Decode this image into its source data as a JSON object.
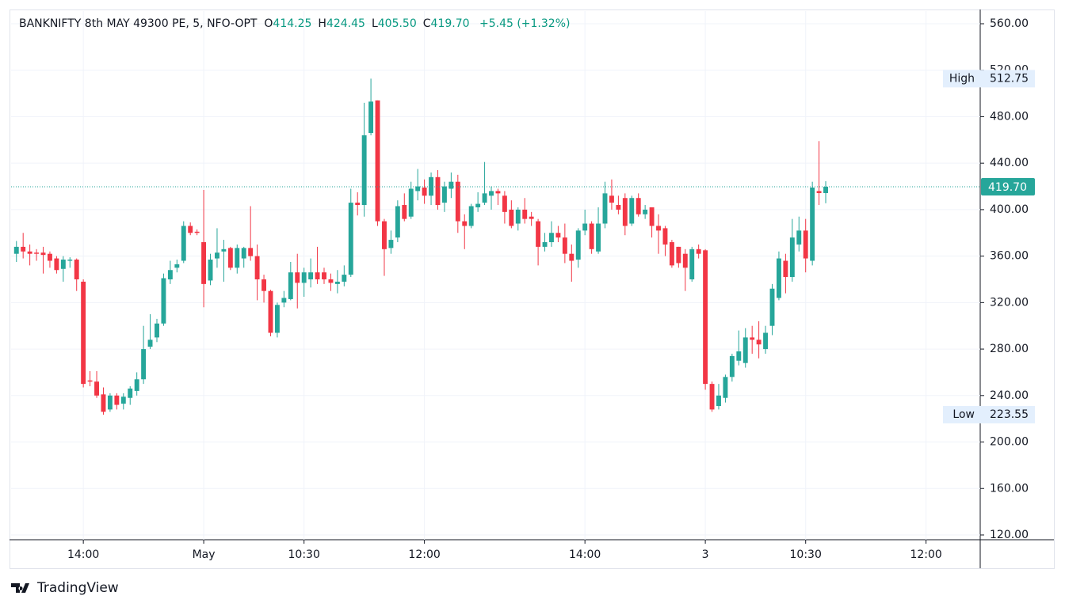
{
  "chart_data": {
    "type": "candlestick",
    "title": "BANKNIFTY 8th MAY 49300 PE, 5, NFO-OPT",
    "ohlc_legend": [
      {
        "label": "O",
        "value": "414.25"
      },
      {
        "label": "H",
        "value": "424.45"
      },
      {
        "label": "L",
        "value": "405.50"
      },
      {
        "label": "C",
        "value": "419.70"
      }
    ],
    "change": "+5.45 (+1.32%)",
    "up_color": "#26a69a",
    "down_color": "#f23645",
    "xlim": [
      -0.8,
      144.1
    ],
    "xticks": [
      {
        "value": 10,
        "label": "14:00"
      },
      {
        "value": 28,
        "label": "May"
      },
      {
        "value": 43,
        "label": "10:30"
      },
      {
        "value": 61,
        "label": "12:00"
      },
      {
        "value": 85,
        "label": "14:00"
      },
      {
        "value": 103,
        "label": "3"
      },
      {
        "value": 118,
        "label": "10:30"
      },
      {
        "value": 136,
        "label": "12:00"
      }
    ],
    "ylim": [
      115.9,
      570.9
    ],
    "yticks": [
      {
        "value": 120,
        "label": "120.00"
      },
      {
        "value": 160,
        "label": "160.00"
      },
      {
        "value": 200,
        "label": "200.00"
      },
      {
        "value": 240,
        "label": "240.00"
      },
      {
        "value": 280,
        "label": "280.00"
      },
      {
        "value": 320,
        "label": "320.00"
      },
      {
        "value": 360,
        "label": "360.00"
      },
      {
        "value": 400,
        "label": "400.00"
      },
      {
        "value": 440,
        "label": "440.00"
      },
      {
        "value": 480,
        "label": "480.00"
      },
      {
        "value": 520,
        "label": "520.00"
      },
      {
        "value": 560,
        "label": "560.00"
      }
    ],
    "grid": true,
    "open": [
      362,
      368,
      364,
      363,
      363,
      362,
      358,
      349,
      356,
      357,
      338,
      253,
      252,
      241,
      228,
      240,
      233,
      238,
      244,
      254,
      282,
      290,
      302,
      340,
      350,
      356,
      386,
      381,
      372,
      339,
      358,
      364,
      367,
      350,
      358,
      367,
      360,
      340,
      330,
      294,
      320,
      323,
      346,
      337,
      340,
      346,
      346,
      340,
      336,
      338,
      344,
      406,
      404,
      466,
      494,
      390,
      367,
      376,
      404,
      394,
      416,
      419,
      412,
      428,
      406,
      418,
      424,
      390,
      386,
      402,
      406,
      412,
      416,
      412,
      400,
      388,
      400,
      394,
      390,
      368,
      372,
      380,
      376,
      362,
      357,
      382,
      388,
      364,
      388,
      412,
      404,
      410,
      388,
      410,
      396,
      402,
      386,
      384,
      372,
      368,
      362,
      340,
      366,
      365,
      250,
      231,
      238,
      256,
      270,
      268,
      290,
      288,
      280,
      300,
      324,
      356,
      342,
      370,
      382,
      356,
      416,
      414.25
    ],
    "high": [
      373,
      380,
      370,
      366,
      368,
      364,
      360,
      360,
      359,
      358,
      340,
      261,
      261,
      247,
      242,
      242,
      242,
      248,
      260,
      300,
      310,
      306,
      345,
      356,
      357,
      390,
      389,
      383,
      417,
      362,
      384,
      374,
      368,
      370,
      368,
      403,
      370,
      344,
      331,
      320,
      330,
      355,
      362,
      350,
      358,
      368,
      350,
      345,
      348,
      352,
      418,
      415,
      492,
      512.75,
      494,
      392,
      382,
      408,
      414,
      424,
      435,
      426,
      432,
      434,
      424,
      432,
      430,
      396,
      405,
      415,
      441,
      420,
      418,
      416,
      408,
      402,
      410,
      398,
      392,
      380,
      390,
      386,
      388,
      370,
      384,
      400,
      390,
      402,
      424,
      426,
      412,
      414,
      412,
      414,
      404,
      402,
      396,
      386,
      374,
      368,
      366,
      368,
      370,
      366,
      252,
      250,
      258,
      276,
      296,
      298,
      300,
      304,
      300,
      336,
      364,
      362,
      392,
      394,
      392,
      424,
      459,
      424.45
    ],
    "low": [
      355,
      358,
      352,
      356,
      345,
      350,
      345,
      338,
      350,
      330,
      247,
      248,
      238,
      223.55,
      226,
      228,
      228,
      232,
      240,
      250,
      280,
      286,
      300,
      336,
      346,
      354,
      378,
      378,
      316,
      335,
      350,
      338,
      348,
      345,
      350,
      356,
      322,
      320,
      291,
      290,
      316,
      322,
      315,
      325,
      333,
      336,
      336,
      330,
      328,
      334,
      342,
      395,
      394,
      464,
      386,
      343,
      362,
      372,
      390,
      392,
      408,
      405,
      404,
      400,
      398,
      410,
      380,
      366,
      384,
      398,
      404,
      400,
      404,
      388,
      384,
      382,
      388,
      386,
      352,
      364,
      368,
      372,
      354,
      338,
      350,
      378,
      362,
      362,
      384,
      400,
      396,
      378,
      386,
      394,
      392,
      376,
      362,
      360,
      350,
      350,
      330,
      338,
      358,
      245,
      226,
      228,
      234,
      252,
      266,
      264,
      276,
      272,
      276,
      292,
      322,
      328,
      338,
      364,
      346,
      352,
      404,
      405.5
    ],
    "close": [
      368,
      364,
      362,
      362,
      361,
      356,
      348,
      357,
      357,
      340,
      250,
      252,
      240,
      226,
      240,
      232,
      239,
      246,
      254,
      280,
      288,
      302,
      341,
      348,
      353,
      386,
      380,
      380,
      336,
      357,
      363,
      366,
      350,
      367,
      367,
      360,
      340,
      330,
      294,
      318,
      324,
      346,
      337,
      346,
      346,
      340,
      340,
      337,
      338,
      344,
      406,
      404,
      464,
      493,
      390,
      366,
      374,
      403,
      392,
      418,
      420,
      412,
      428,
      404,
      420,
      424,
      390,
      386,
      403,
      405,
      414,
      416,
      414,
      398,
      386,
      400,
      392,
      392,
      368,
      372,
      380,
      376,
      362,
      356,
      382,
      388,
      366,
      388,
      414,
      406,
      400,
      386,
      410,
      396,
      400,
      386,
      382,
      370,
      352,
      354,
      350,
      366,
      362,
      250,
      228,
      240,
      256,
      274,
      278,
      290,
      288,
      284,
      294,
      332,
      358,
      342,
      376,
      382,
      358,
      419,
      414.25,
      419.7
    ],
    "last_price": {
      "value": 419.7,
      "label": "419.70"
    },
    "high_marker": {
      "text": "High",
      "value": 512.75,
      "label": "512.75"
    },
    "low_marker": {
      "text": "Low",
      "value": 223.55,
      "label": "223.55"
    },
    "branding": "TradingView"
  }
}
